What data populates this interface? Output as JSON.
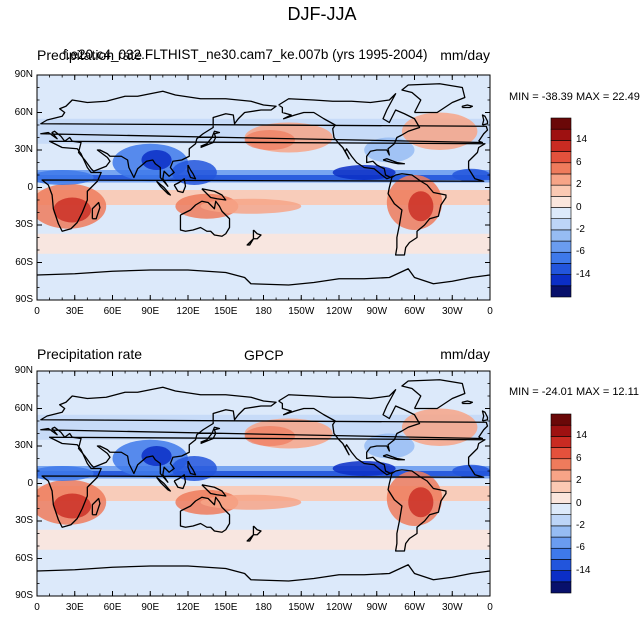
{
  "title": "DJF-JJA",
  "colors": {
    "coast": "#000000",
    "levels": [
      "#08106b",
      "#0b2ec6",
      "#2255dc",
      "#3e79ea",
      "#6a9cf0",
      "#96bcf3",
      "#bdd5f7",
      "#ddeafa",
      "#fbe6dd",
      "#fbc9b3",
      "#f7a487",
      "#ef7b5c",
      "#e4513c",
      "#c92b22",
      "#9e1111",
      "#6a0808"
    ]
  },
  "colorbar": {
    "tick_labels": [
      "14",
      "6",
      "2",
      "0",
      "-2",
      "-6",
      "-14"
    ]
  },
  "axes": {
    "lat_labels": [
      "90N",
      "60N",
      "30N",
      "0",
      "30S",
      "60S",
      "90S"
    ],
    "lon_labels": [
      "0",
      "30E",
      "60E",
      "90E",
      "120E",
      "150E",
      "180",
      "150W",
      "120W",
      "90W",
      "60W",
      "30W",
      "0"
    ]
  },
  "panels": [
    {
      "left_label": "Precipitation rate",
      "center_label": "f.e20.c4_032.FLTHIST_ne30.cam7_ke.007b (yrs 1995-2004)",
      "right_label": "mm/day",
      "minmax": "MIN = -38.39  MAX =  22.49"
    },
    {
      "left_label": "Precipitation rate",
      "center_label": "GPCP",
      "right_label": "mm/day",
      "minmax": "MIN = -24.01  MAX =  12.11"
    }
  ]
}
